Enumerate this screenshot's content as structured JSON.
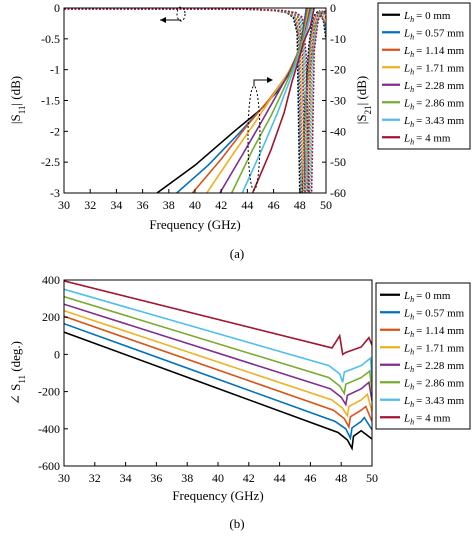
{
  "colors": [
    "#000000",
    "#0072BD",
    "#D95319",
    "#EDB120",
    "#7E2F8E",
    "#77AC30",
    "#4DBEEE",
    "#A2142F"
  ],
  "legend": [
    {
      "sym": "L",
      "sub": "h",
      "text": "= 0 mm"
    },
    {
      "sym": "L",
      "sub": "h",
      "text": "= 0.57 mm"
    },
    {
      "sym": "L",
      "sub": "h",
      "text": "= 1.14 mm"
    },
    {
      "sym": "L",
      "sub": "h",
      "text": "= 1.71 mm"
    },
    {
      "sym": "L",
      "sub": "h",
      "text": "= 2.28 mm"
    },
    {
      "sym": "L",
      "sub": "h",
      "text": "= 2.86 mm"
    },
    {
      "sym": "L",
      "sub": "h",
      "text": "= 3.43 mm"
    },
    {
      "sym": "L",
      "sub": "h",
      "text": "= 4 mm"
    }
  ],
  "chart_data": [
    {
      "type": "line",
      "panel_label": "(a)",
      "xlabel": "Frequency (GHz)",
      "ylabel_left": {
        "base": "|S",
        "sub": "11",
        "tail": "| (dB)"
      },
      "ylabel_right": {
        "base": "|S",
        "sub": "21",
        "tail": "| (dB)"
      },
      "xlim": [
        30,
        50
      ],
      "ylim_left": [
        -3,
        0
      ],
      "ylim_right": [
        -60,
        0
      ],
      "xticks": [
        30,
        32,
        34,
        36,
        38,
        40,
        42,
        44,
        46,
        48,
        50
      ],
      "yticks_left": [
        0,
        -0.5,
        -1,
        -1.5,
        -2,
        -2.5,
        -3
      ],
      "yticks_right": [
        0,
        -10,
        -20,
        -30,
        -40,
        -50,
        -60
      ],
      "legend_position": "outside-right",
      "s11_series": [
        {
          "name_index": 0,
          "points": [
            [
              37.1,
              -3
            ],
            [
              40,
              -2.55
            ],
            [
              43,
              -2.0
            ],
            [
              45,
              -1.65
            ],
            [
              46.5,
              -1.3
            ],
            [
              47.5,
              -0.95
            ],
            [
              48,
              -0.7
            ],
            [
              48.3,
              -0.3
            ],
            [
              48.5,
              0
            ]
          ]
        },
        {
          "name_index": 1,
          "points": [
            [
              38.6,
              -3
            ],
            [
              41,
              -2.55
            ],
            [
              43.5,
              -2.0
            ],
            [
              45.2,
              -1.6
            ],
            [
              46.6,
              -1.25
            ],
            [
              47.6,
              -0.9
            ],
            [
              48.1,
              -0.6
            ],
            [
              48.5,
              0
            ]
          ]
        },
        {
          "name_index": 2,
          "points": [
            [
              39.8,
              -3
            ],
            [
              42,
              -2.45
            ],
            [
              44,
              -1.9
            ],
            [
              45.6,
              -1.5
            ],
            [
              46.8,
              -1.15
            ],
            [
              47.7,
              -0.85
            ],
            [
              48.2,
              -0.55
            ],
            [
              48.6,
              0
            ]
          ]
        },
        {
          "name_index": 3,
          "points": [
            [
              40.9,
              -3
            ],
            [
              42.8,
              -2.4
            ],
            [
              44.6,
              -1.85
            ],
            [
              46,
              -1.4
            ],
            [
              47.1,
              -1.05
            ],
            [
              47.8,
              -0.75
            ],
            [
              48.3,
              -0.45
            ],
            [
              48.7,
              0
            ]
          ]
        },
        {
          "name_index": 4,
          "points": [
            [
              41.9,
              -3
            ],
            [
              43.7,
              -2.35
            ],
            [
              45.2,
              -1.8
            ],
            [
              46.4,
              -1.35
            ],
            [
              47.3,
              -1.0
            ],
            [
              47.9,
              -0.7
            ],
            [
              48.4,
              -0.4
            ],
            [
              48.8,
              0
            ]
          ]
        },
        {
          "name_index": 5,
          "points": [
            [
              42.8,
              -3
            ],
            [
              44.4,
              -2.3
            ],
            [
              45.8,
              -1.75
            ],
            [
              46.8,
              -1.3
            ],
            [
              47.5,
              -0.95
            ],
            [
              48.0,
              -0.65
            ],
            [
              48.5,
              -0.35
            ],
            [
              48.9,
              0
            ]
          ]
        },
        {
          "name_index": 6,
          "points": [
            [
              43.6,
              -3
            ],
            [
              45.1,
              -2.3
            ],
            [
              46.3,
              -1.7
            ],
            [
              47.1,
              -1.25
            ],
            [
              47.7,
              -0.9
            ],
            [
              48.2,
              -0.6
            ],
            [
              48.6,
              -0.3
            ],
            [
              49.0,
              0
            ]
          ]
        },
        {
          "name_index": 7,
          "points": [
            [
              44.4,
              -3
            ],
            [
              45.8,
              -2.3
            ],
            [
              46.8,
              -1.7
            ],
            [
              47.4,
              -1.2
            ],
            [
              47.9,
              -0.85
            ],
            [
              48.3,
              -0.55
            ],
            [
              48.8,
              -0.3
            ],
            [
              49.1,
              0
            ]
          ]
        }
      ],
      "s21_series": [
        {
          "name_index": 0,
          "points": [
            [
              30,
              -0.3
            ],
            [
              44,
              -0.4
            ],
            [
              46,
              -0.8
            ],
            [
              47,
              -1.5
            ],
            [
              47.5,
              -3
            ],
            [
              47.8,
              -8
            ],
            [
              48.0,
              -60
            ],
            [
              48.2,
              -60
            ],
            [
              48.4,
              -30
            ],
            [
              48.7,
              -12
            ],
            [
              49.0,
              -3
            ],
            [
              49.4,
              -1
            ],
            [
              49.8,
              -4
            ],
            [
              50,
              -10
            ]
          ]
        },
        {
          "name_index": 1,
          "points": [
            [
              30,
              -0.3
            ],
            [
              44,
              -0.4
            ],
            [
              46,
              -0.8
            ],
            [
              47.1,
              -1.5
            ],
            [
              47.6,
              -3
            ],
            [
              47.9,
              -9
            ],
            [
              48.1,
              -60
            ],
            [
              48.3,
              -60
            ],
            [
              48.5,
              -28
            ],
            [
              48.8,
              -10
            ],
            [
              49.1,
              -3
            ],
            [
              49.5,
              -1
            ],
            [
              49.9,
              -5
            ],
            [
              50,
              -9
            ]
          ]
        },
        {
          "name_index": 2,
          "points": [
            [
              30,
              -0.3
            ],
            [
              44,
              -0.4
            ],
            [
              46.2,
              -0.8
            ],
            [
              47.2,
              -1.5
            ],
            [
              47.7,
              -3
            ],
            [
              48.0,
              -10
            ],
            [
              48.2,
              -60
            ],
            [
              48.4,
              -60
            ],
            [
              48.6,
              -25
            ],
            [
              48.9,
              -9
            ],
            [
              49.2,
              -2.5
            ],
            [
              49.6,
              -1
            ],
            [
              50,
              -6
            ]
          ]
        },
        {
          "name_index": 3,
          "points": [
            [
              30,
              -0.3
            ],
            [
              44,
              -0.4
            ],
            [
              46.3,
              -0.8
            ],
            [
              47.3,
              -1.5
            ],
            [
              47.8,
              -3
            ],
            [
              48.1,
              -12
            ],
            [
              48.3,
              -60
            ],
            [
              48.5,
              -60
            ],
            [
              48.7,
              -22
            ],
            [
              49.0,
              -8
            ],
            [
              49.3,
              -2
            ],
            [
              49.7,
              -1
            ],
            [
              50,
              -4
            ]
          ]
        },
        {
          "name_index": 4,
          "points": [
            [
              30,
              -0.3
            ],
            [
              44,
              -0.4
            ],
            [
              46.4,
              -0.8
            ],
            [
              47.4,
              -1.5
            ],
            [
              47.9,
              -3
            ],
            [
              48.2,
              -13
            ],
            [
              48.4,
              -60
            ],
            [
              48.6,
              -60
            ],
            [
              48.8,
              -20
            ],
            [
              49.1,
              -7
            ],
            [
              49.4,
              -2
            ],
            [
              49.8,
              -1
            ],
            [
              50,
              -3
            ]
          ]
        },
        {
          "name_index": 5,
          "points": [
            [
              30,
              -0.3
            ],
            [
              44,
              -0.4
            ],
            [
              46.5,
              -0.8
            ],
            [
              47.5,
              -1.5
            ],
            [
              48.0,
              -3
            ],
            [
              48.3,
              -14
            ],
            [
              48.5,
              -60
            ],
            [
              48.7,
              -60
            ],
            [
              48.9,
              -18
            ],
            [
              49.2,
              -6
            ],
            [
              49.5,
              -2
            ],
            [
              49.9,
              -1
            ],
            [
              50,
              -2
            ]
          ]
        },
        {
          "name_index": 6,
          "points": [
            [
              30,
              -0.3
            ],
            [
              44,
              -0.4
            ],
            [
              46.6,
              -0.8
            ],
            [
              47.6,
              -1.5
            ],
            [
              48.1,
              -3
            ],
            [
              48.4,
              -15
            ],
            [
              48.6,
              -60
            ],
            [
              48.8,
              -60
            ],
            [
              49.0,
              -16
            ],
            [
              49.3,
              -5
            ],
            [
              49.6,
              -1.5
            ],
            [
              50,
              -1
            ]
          ]
        },
        {
          "name_index": 7,
          "points": [
            [
              30,
              -0.3
            ],
            [
              44,
              -0.4
            ],
            [
              46.7,
              -0.8
            ],
            [
              47.7,
              -1.5
            ],
            [
              48.2,
              -3
            ],
            [
              48.5,
              -16
            ],
            [
              48.7,
              -60
            ],
            [
              48.9,
              -60
            ],
            [
              49.1,
              -14
            ],
            [
              49.4,
              -4
            ],
            [
              49.7,
              -1.5
            ],
            [
              50,
              -1
            ]
          ]
        }
      ]
    },
    {
      "type": "line",
      "panel_label": "(b)",
      "xlabel": "Frequency (GHz)",
      "ylabel": {
        "base": "∠ S",
        "sub": "11",
        "tail": " (deg.)"
      },
      "xlim": [
        30,
        50
      ],
      "ylim": [
        -600,
        400
      ],
      "xticks": [
        30,
        32,
        34,
        36,
        38,
        40,
        42,
        44,
        46,
        48,
        50
      ],
      "yticks": [
        400,
        200,
        0,
        -200,
        -400,
        -600
      ],
      "legend_position": "top-right",
      "series": [
        {
          "name_index": 0,
          "points": [
            [
              30,
              120
            ],
            [
              47.8,
              -420
            ],
            [
              48.4,
              -460
            ],
            [
              48.7,
              -505
            ],
            [
              48.8,
              -440
            ],
            [
              49.3,
              -410
            ],
            [
              50,
              -455
            ]
          ]
        },
        {
          "name_index": 1,
          "points": [
            [
              30,
              165
            ],
            [
              47.6,
              -360
            ],
            [
              48.3,
              -400
            ],
            [
              48.6,
              -450
            ],
            [
              48.7,
              -395
            ],
            [
              49.3,
              -360
            ],
            [
              49.5,
              -340
            ],
            [
              50,
              -405
            ]
          ]
        },
        {
          "name_index": 2,
          "points": [
            [
              30,
              205
            ],
            [
              47.5,
              -300
            ],
            [
              48.2,
              -345
            ],
            [
              48.5,
              -390
            ],
            [
              48.6,
              -335
            ],
            [
              49.3,
              -300
            ],
            [
              49.6,
              -280
            ],
            [
              50,
              -360
            ]
          ]
        },
        {
          "name_index": 3,
          "points": [
            [
              30,
              235
            ],
            [
              47.4,
              -245
            ],
            [
              48.1,
              -290
            ],
            [
              48.4,
              -330
            ],
            [
              48.5,
              -280
            ],
            [
              49.3,
              -245
            ],
            [
              49.7,
              -215
            ],
            [
              50,
              -310
            ]
          ]
        },
        {
          "name_index": 4,
          "points": [
            [
              30,
              270
            ],
            [
              47.3,
              -185
            ],
            [
              48.0,
              -230
            ],
            [
              48.3,
              -270
            ],
            [
              48.4,
              -220
            ],
            [
              49.3,
              -185
            ],
            [
              49.8,
              -150
            ],
            [
              50,
              -250
            ]
          ]
        },
        {
          "name_index": 5,
          "points": [
            [
              30,
              310
            ],
            [
              47.2,
              -125
            ],
            [
              47.9,
              -170
            ],
            [
              48.2,
              -210
            ],
            [
              48.3,
              -160
            ],
            [
              49.3,
              -125
            ],
            [
              49.85,
              -90
            ],
            [
              50,
              -195
            ]
          ]
        },
        {
          "name_index": 6,
          "points": [
            [
              30,
              350
            ],
            [
              47.2,
              -60
            ],
            [
              47.9,
              -105
            ],
            [
              48.1,
              -150
            ],
            [
              48.2,
              -95
            ],
            [
              49.3,
              -60
            ],
            [
              49.9,
              -20
            ],
            [
              50,
              -135
            ]
          ]
        },
        {
          "name_index": 7,
          "points": [
            [
              30,
              395
            ],
            [
              47.4,
              35
            ],
            [
              47.9,
              100
            ],
            [
              48.1,
              0
            ],
            [
              48.3,
              10
            ],
            [
              49.3,
              40
            ],
            [
              49.8,
              90
            ],
            [
              50,
              50
            ]
          ]
        }
      ]
    }
  ]
}
